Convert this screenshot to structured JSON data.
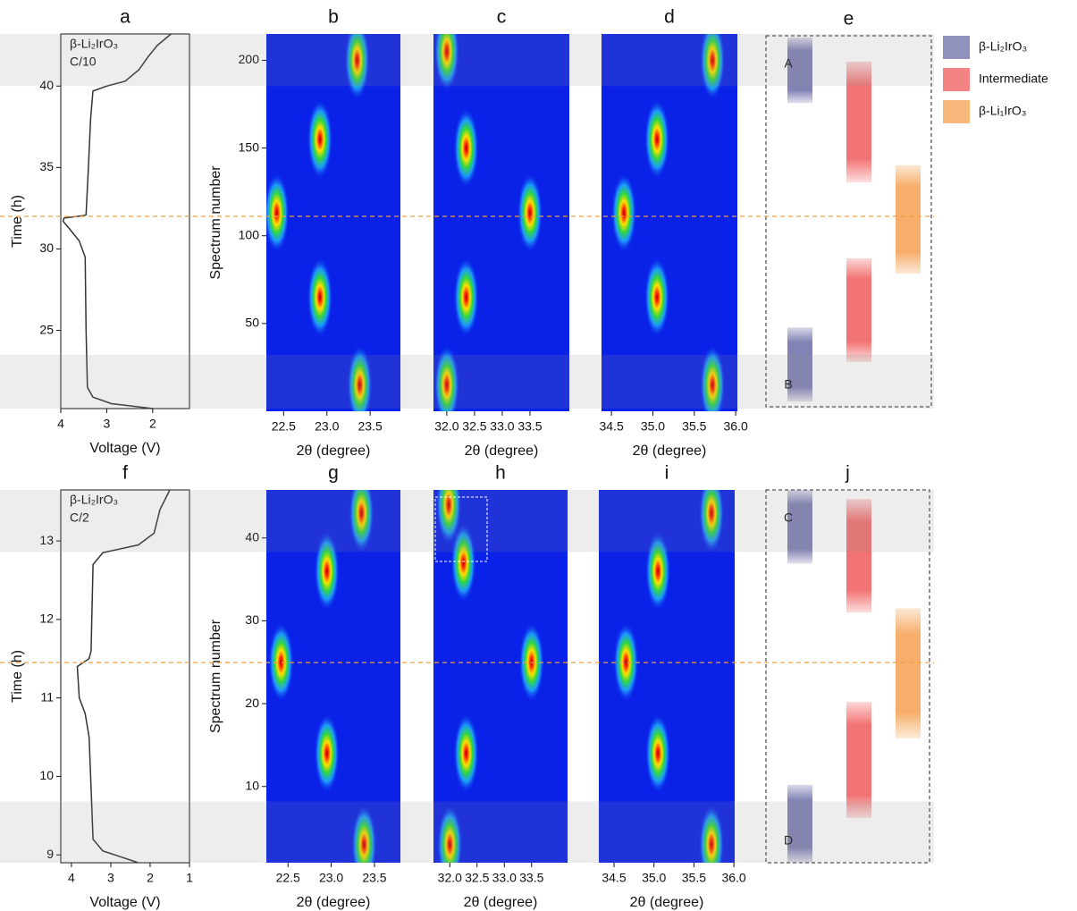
{
  "chart_data": [
    {
      "type": "line",
      "title": "a",
      "xlabel": "Voltage (V)",
      "ylabel": "Time (h)",
      "annotations": [
        "β-Li₂IrO₃",
        "C/10"
      ],
      "x": [
        2.0,
        2.9,
        3.3,
        3.42,
        3.45,
        3.47,
        3.6,
        3.8,
        3.95,
        3.93,
        3.5,
        3.45,
        3.4,
        3.35,
        3.3,
        3.0,
        2.6,
        2.3,
        2.1,
        1.9,
        1.6
      ],
      "y": [
        20.2,
        20.5,
        20.9,
        21.5,
        25,
        29.5,
        30.5,
        31.2,
        31.7,
        31.9,
        32.05,
        32.1,
        35,
        38,
        39.7,
        40.0,
        40.3,
        41,
        41.8,
        42.5,
        43.2
      ],
      "xlim": [
        4,
        1.2
      ],
      "xticks": [
        4,
        3,
        2
      ],
      "ylim": [
        20.2,
        43.2
      ],
      "yticks": [
        25,
        30,
        35,
        40
      ],
      "bands": [
        [
          40,
          43.2
        ],
        [
          20.2,
          23.5
        ]
      ],
      "marker": 32.0
    },
    {
      "type": "heatmap",
      "title": "b",
      "xlabel": "2θ (degree)",
      "ylabel": "Spectrum number",
      "peaks": [
        {
          "x": 23.35,
          "y": 200
        },
        {
          "x": 22.92,
          "y": 155
        },
        {
          "x": 22.42,
          "y": 113
        },
        {
          "x": 22.92,
          "y": 65
        },
        {
          "x": 23.38,
          "y": 15
        }
      ],
      "xlim": [
        22.3,
        23.85
      ],
      "xticks": [
        22.5,
        {
          "value": 23.0,
          "label": "23.0"
        },
        23.5
      ],
      "ylim": [
        0,
        215
      ],
      "yticks": [
        50,
        100,
        150,
        200
      ]
    },
    {
      "type": "heatmap",
      "title": "c",
      "xlabel": "2θ (degree)",
      "peaks": [
        {
          "x": 32.0,
          "y": 205
        },
        {
          "x": 32.35,
          "y": 150
        },
        {
          "x": 33.5,
          "y": 113
        },
        {
          "x": 32.35,
          "y": 65
        },
        {
          "x": 32.0,
          "y": 15
        }
      ],
      "xlim": [
        31.76,
        34.21
      ],
      "xticks": [
        {
          "value": 32.0,
          "label": "32.0"
        },
        32.5,
        {
          "value": 33.0,
          "label": "33.0"
        },
        33.5
      ],
      "ylim": [
        0,
        215
      ]
    },
    {
      "type": "heatmap",
      "title": "d",
      "xlabel": "2θ (degree)",
      "peaks": [
        {
          "x": 35.72,
          "y": 200
        },
        {
          "x": 35.05,
          "y": 155
        },
        {
          "x": 34.65,
          "y": 113
        },
        {
          "x": 35.05,
          "y": 65
        },
        {
          "x": 35.72,
          "y": 15
        }
      ],
      "xlim": [
        34.38,
        36.02
      ],
      "xticks": [
        34.5,
        {
          "value": 35.0,
          "label": "35.0"
        },
        35.5,
        {
          "value": 36.0,
          "label": "36.0"
        }
      ],
      "ylim": [
        0,
        215
      ]
    },
    {
      "type": "bar",
      "title": "e",
      "labels": [
        "A",
        "B"
      ],
      "ylim": [
        0,
        215
      ],
      "series": [
        {
          "name": "β-Li₂IrO₃",
          "color": "#6c6ca8"
        },
        {
          "name": "Intermediate",
          "color": "#f05a5a"
        },
        {
          "name": "β-Li₁IrO₃",
          "color": "#f5a050"
        }
      ],
      "bars": [
        {
          "phase": 0,
          "range": [
            176,
            214
          ]
        },
        {
          "phase": 1,
          "range": [
            130,
            200
          ]
        },
        {
          "phase": 2,
          "range": [
            77,
            140
          ]
        },
        {
          "phase": 1,
          "range": [
            26,
            86
          ]
        },
        {
          "phase": 0,
          "range": [
            3,
            46
          ]
        }
      ]
    },
    {
      "type": "line",
      "title": "f",
      "xlabel": "Voltage (V)",
      "ylabel": "Time (h)",
      "annotations": [
        "β-Li₂IrO₃",
        "C/2"
      ],
      "x": [
        2.3,
        3.2,
        3.45,
        3.55,
        3.65,
        3.8,
        3.85,
        3.55,
        3.5,
        3.45,
        3.2,
        2.3,
        1.9,
        1.75,
        1.5
      ],
      "y": [
        8.9,
        9.05,
        9.2,
        10.5,
        10.8,
        11.0,
        11.4,
        11.5,
        11.6,
        12.7,
        12.85,
        12.95,
        13.1,
        13.4,
        13.65
      ],
      "xlim": [
        4.27,
        1.0
      ],
      "xticks": [
        4,
        3,
        2,
        1
      ],
      "ylim": [
        8.9,
        13.65
      ],
      "yticks": [
        9,
        10,
        11,
        12,
        13
      ],
      "bands": [
        [
          12.86,
          13.65
        ],
        [
          8.9,
          9.68
        ]
      ],
      "marker": 11.45
    },
    {
      "type": "heatmap",
      "title": "g",
      "xlabel": "2θ (degree)",
      "ylabel": "Spectrum number",
      "peaks": [
        {
          "x": 23.35,
          "y": 43
        },
        {
          "x": 22.95,
          "y": 36
        },
        {
          "x": 22.42,
          "y": 25
        },
        {
          "x": 22.95,
          "y": 14
        },
        {
          "x": 23.38,
          "y": 3
        }
      ],
      "xlim": [
        22.25,
        23.8
      ],
      "xticks": [
        22.5,
        {
          "value": 23.0,
          "label": "23.0"
        },
        23.5
      ],
      "ylim": [
        0.8,
        45.8
      ],
      "yticks": [
        10,
        20,
        30,
        40
      ]
    },
    {
      "type": "heatmap",
      "title": "h",
      "xlabel": "2θ (degree)",
      "peaks": [
        {
          "x": 31.98,
          "y": 44
        },
        {
          "x": 32.25,
          "y": 37
        },
        {
          "x": 33.5,
          "y": 25
        },
        {
          "x": 32.3,
          "y": 14
        },
        {
          "x": 32.0,
          "y": 3
        }
      ],
      "xlim": [
        31.7,
        34.16
      ],
      "xticks": [
        {
          "value": 32.0,
          "label": "32.0"
        },
        32.5,
        {
          "value": 33.0,
          "label": "33.0"
        },
        33.5
      ],
      "ylim": [
        0.8,
        45.8
      ]
    },
    {
      "type": "heatmap",
      "title": "i",
      "xlabel": "2θ (degree)",
      "peaks": [
        {
          "x": 35.72,
          "y": 43
        },
        {
          "x": 35.05,
          "y": 36
        },
        {
          "x": 34.65,
          "y": 25
        },
        {
          "x": 35.05,
          "y": 14
        },
        {
          "x": 35.72,
          "y": 3
        }
      ],
      "xlim": [
        34.31,
        36.01
      ],
      "xticks": [
        34.5,
        {
          "value": 35.0,
          "label": "35.0"
        },
        35.5,
        {
          "value": 36.0,
          "label": "36.0"
        }
      ],
      "ylim": [
        0.8,
        45.8
      ]
    },
    {
      "type": "bar",
      "title": "j",
      "labels": [
        "C",
        "D"
      ],
      "ylim": [
        0.8,
        45.8
      ],
      "bars": [
        {
          "phase": 0,
          "range": [
            36.9,
            45.8
          ]
        },
        {
          "phase": 1,
          "range": [
            31,
            44.7
          ]
        },
        {
          "phase": 2,
          "range": [
            15.8,
            31.5
          ]
        },
        {
          "phase": 1,
          "range": [
            6.2,
            20.2
          ]
        },
        {
          "phase": 0,
          "range": [
            0.8,
            10.2
          ]
        }
      ]
    }
  ]
}
